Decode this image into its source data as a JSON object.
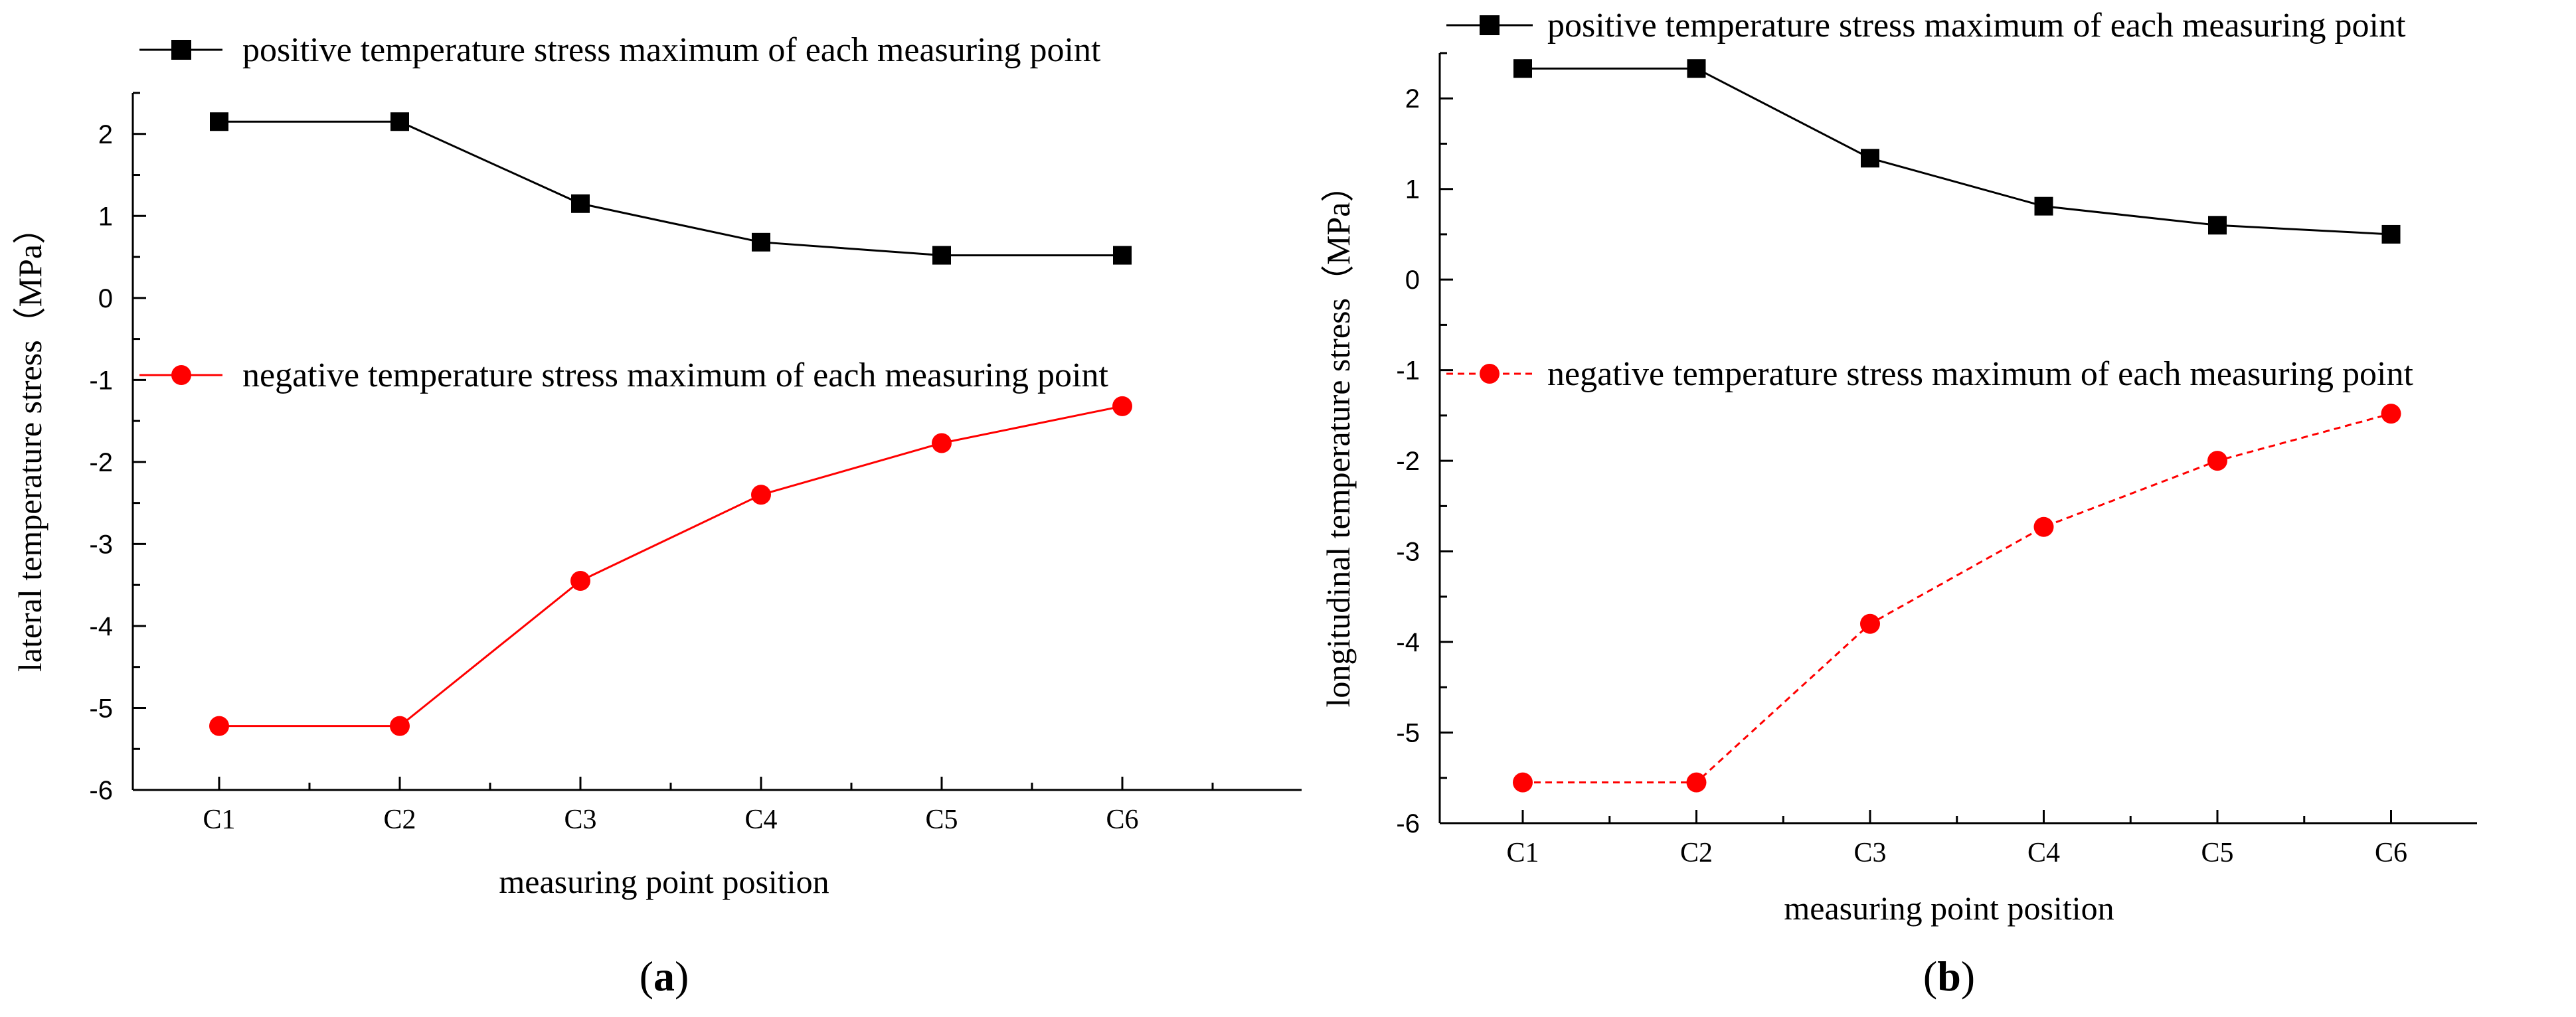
{
  "chart_data": [
    {
      "type": "line",
      "panel_label": "a",
      "paren_open": "(",
      "paren_close": ")",
      "xlabel": "measuring point position",
      "ylabel": "lateral temperature stress（MPa）",
      "categories": [
        "C1",
        "C2",
        "C3",
        "C4",
        "C5",
        "C6"
      ],
      "ylim": [
        -6,
        2.5
      ],
      "yticks": [
        -6,
        -5,
        -4,
        -3,
        -2,
        -1,
        0,
        1,
        2
      ],
      "ytick_labels": [
        "-6",
        "-5",
        "-4",
        "-3",
        "-2",
        "-1",
        "0",
        "1",
        "2"
      ],
      "grid": false,
      "series": [
        {
          "name": "positive temperature stress maximum of each measuring point",
          "values": [
            2.15,
            2.15,
            1.15,
            0.68,
            0.52,
            0.52
          ],
          "color": "#000000",
          "marker": "square",
          "dashed": false
        },
        {
          "name": "negative temperature stress maximum of each measuring point",
          "values": [
            -5.22,
            -5.22,
            -3.45,
            -2.4,
            -1.77,
            -1.32
          ],
          "color": "#ff0000",
          "marker": "circle",
          "dashed": false
        }
      ]
    },
    {
      "type": "line",
      "panel_label": "b",
      "paren_open": "(",
      "paren_close": ")",
      "xlabel": "measuring point position",
      "ylabel": "longitudinal temperature stress（MPa）",
      "categories": [
        "C1",
        "C2",
        "C3",
        "C4",
        "C5",
        "C6"
      ],
      "ylim": [
        -6,
        2.5
      ],
      "yticks": [
        -6,
        -5,
        -4,
        -3,
        -2,
        -1,
        0,
        1,
        2
      ],
      "ytick_labels": [
        "-6",
        "-5",
        "-4",
        "-3",
        "-2",
        "-1",
        "0",
        "1",
        "2"
      ],
      "grid": false,
      "series": [
        {
          "name": "positive temperature stress maximum of each measuring point",
          "values": [
            2.33,
            2.33,
            1.34,
            0.81,
            0.6,
            0.5
          ],
          "color": "#000000",
          "marker": "square",
          "dashed": false
        },
        {
          "name": "negative temperature stress maximum of each measuring point",
          "values": [
            -5.55,
            -5.55,
            -3.8,
            -2.73,
            -2.0,
            -1.48
          ],
          "color": "#ff0000",
          "marker": "circle",
          "dashed": true
        }
      ]
    }
  ]
}
